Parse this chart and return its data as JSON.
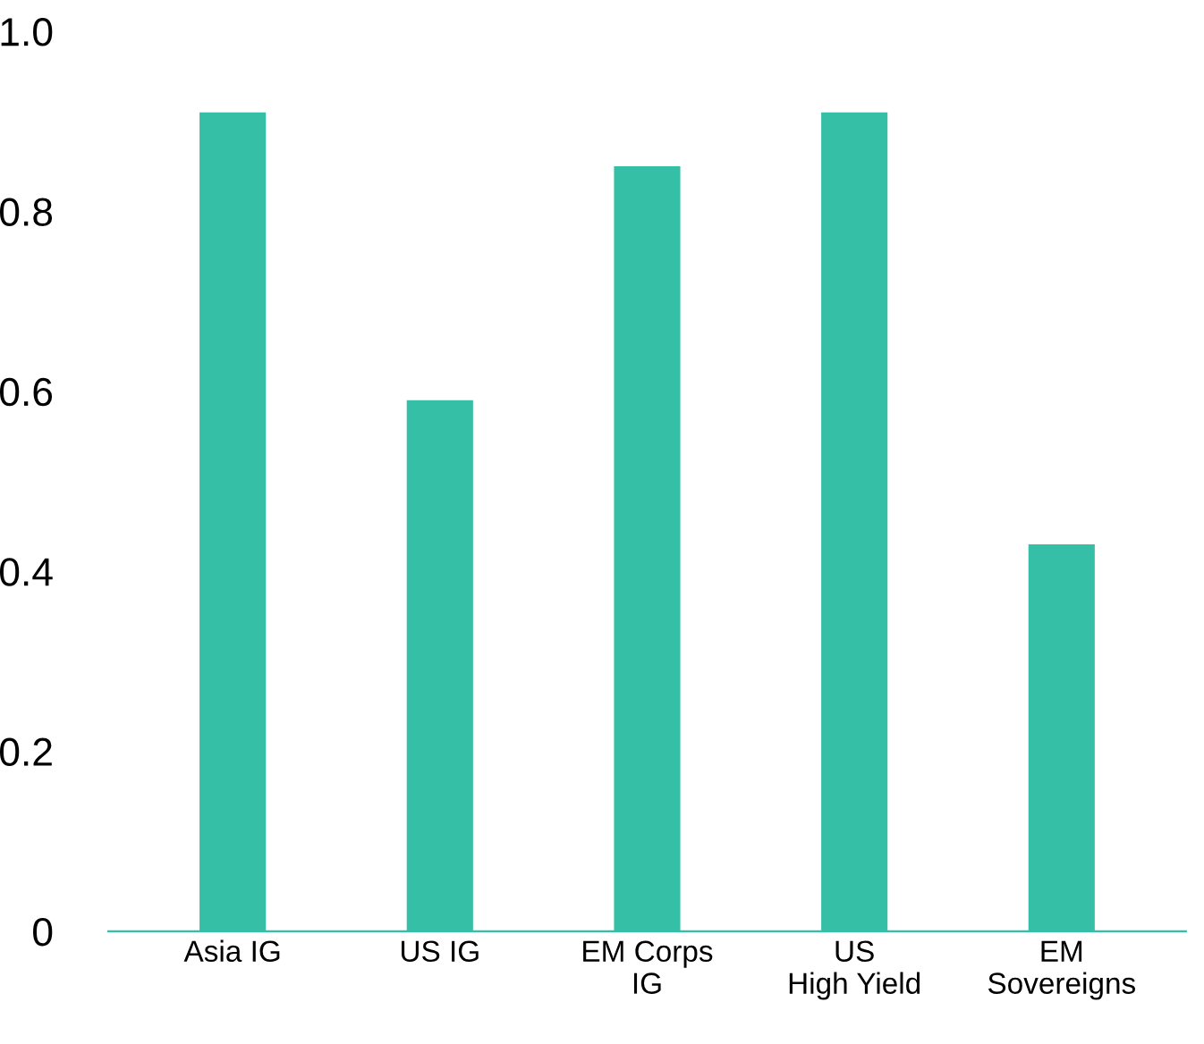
{
  "chart_data": {
    "type": "bar",
    "categories": [
      "Asia IG",
      "US IG",
      "EM Corps\nIG",
      "US\nHigh Yield",
      "EM\nSovereigns"
    ],
    "values": [
      0.91,
      0.59,
      0.85,
      0.91,
      0.43
    ],
    "color": "#35bfa6",
    "ylim": [
      0,
      1.0
    ],
    "yticks": [
      {
        "value": 0,
        "label": "0"
      },
      {
        "value": 0.2,
        "label": "0.2"
      },
      {
        "value": 0.4,
        "label": "0.4"
      },
      {
        "value": 0.6,
        "label": "0.6"
      },
      {
        "value": 0.8,
        "label": "0.8"
      },
      {
        "value": 1.0,
        "label": "1.0"
      }
    ],
    "grid": false,
    "legend": false
  }
}
